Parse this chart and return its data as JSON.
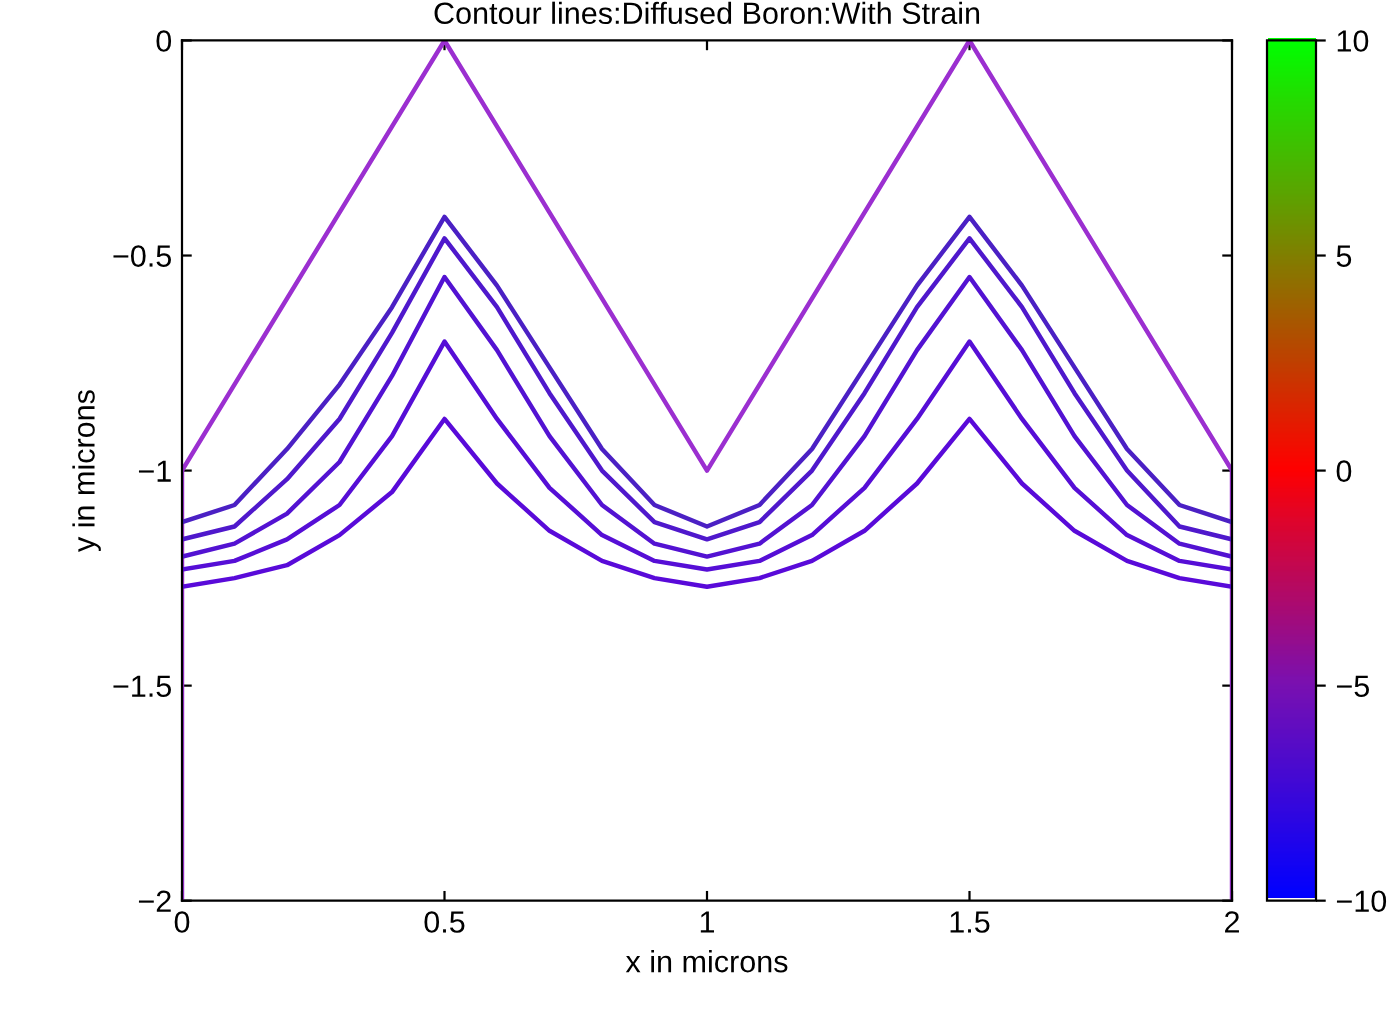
{
  "chart_data": {
    "type": "line",
    "title": "Contour lines:Diffused Boron:With Strain",
    "xlabel": "x in microns",
    "ylabel": "y in microns",
    "xlim": [
      0,
      2
    ],
    "xticks": [
      0,
      0.5,
      1,
      1.5,
      2
    ],
    "ylim": [
      -2,
      0
    ],
    "yticks": [
      -2,
      -1.5,
      -1,
      -0.5,
      0
    ],
    "clim": [
      -10,
      10
    ],
    "cticks": [
      -10,
      -5,
      0,
      5,
      10
    ],
    "grid": false,
    "legend": false,
    "marker": "none",
    "line_style": "solid",
    "series": [
      {
        "color": "#9b2fd0",
        "x": [
          0,
          0,
          0.5,
          1,
          1.5,
          2,
          2
        ],
        "values": [
          -2,
          -1,
          0,
          -1,
          0,
          -1,
          -2
        ]
      },
      {
        "color": "#4b20c4",
        "x": [
          0,
          0.1,
          0.2,
          0.3,
          0.4,
          0.5,
          0.6,
          0.7,
          0.8,
          0.9,
          1.0,
          1.1,
          1.2,
          1.3,
          1.4,
          1.5,
          1.6,
          1.7,
          1.8,
          1.9,
          2.0
        ],
        "values": [
          -1.12,
          -1.08,
          -0.95,
          -0.8,
          -0.62,
          -0.41,
          -0.57,
          -0.76,
          -0.95,
          -1.08,
          -1.13,
          -1.08,
          -0.95,
          -0.76,
          -0.57,
          -0.41,
          -0.57,
          -0.76,
          -0.95,
          -1.08,
          -1.12
        ]
      },
      {
        "color": "#4f18cc",
        "x": [
          0,
          0.1,
          0.2,
          0.3,
          0.4,
          0.5,
          0.6,
          0.7,
          0.8,
          0.9,
          1.0,
          1.1,
          1.2,
          1.3,
          1.4,
          1.5,
          1.6,
          1.7,
          1.8,
          1.9,
          2.0
        ],
        "values": [
          -1.16,
          -1.13,
          -1.02,
          -0.88,
          -0.68,
          -0.46,
          -0.62,
          -0.82,
          -1.0,
          -1.12,
          -1.16,
          -1.12,
          -1.0,
          -0.82,
          -0.62,
          -0.46,
          -0.62,
          -0.82,
          -1.0,
          -1.13,
          -1.16
        ]
      },
      {
        "color": "#5312d2",
        "x": [
          0,
          0.1,
          0.2,
          0.3,
          0.4,
          0.5,
          0.6,
          0.7,
          0.8,
          0.9,
          1.0,
          1.1,
          1.2,
          1.3,
          1.4,
          1.5,
          1.6,
          1.7,
          1.8,
          1.9,
          2.0
        ],
        "values": [
          -1.2,
          -1.17,
          -1.1,
          -0.98,
          -0.78,
          -0.55,
          -0.72,
          -0.92,
          -1.08,
          -1.17,
          -1.2,
          -1.17,
          -1.08,
          -0.92,
          -0.72,
          -0.55,
          -0.72,
          -0.92,
          -1.08,
          -1.17,
          -1.2
        ]
      },
      {
        "color": "#560ed6",
        "x": [
          0,
          0.1,
          0.2,
          0.3,
          0.4,
          0.5,
          0.6,
          0.7,
          0.8,
          0.9,
          1.0,
          1.1,
          1.2,
          1.3,
          1.4,
          1.5,
          1.6,
          1.7,
          1.8,
          1.9,
          2.0
        ],
        "values": [
          -1.23,
          -1.21,
          -1.16,
          -1.08,
          -0.92,
          -0.7,
          -0.88,
          -1.04,
          -1.15,
          -1.21,
          -1.23,
          -1.21,
          -1.15,
          -1.04,
          -0.88,
          -0.7,
          -0.88,
          -1.04,
          -1.15,
          -1.21,
          -1.23
        ]
      },
      {
        "color": "#590ad9",
        "x": [
          0,
          0.1,
          0.2,
          0.3,
          0.4,
          0.5,
          0.6,
          0.7,
          0.8,
          0.9,
          1.0,
          1.1,
          1.2,
          1.3,
          1.4,
          1.5,
          1.6,
          1.7,
          1.8,
          1.9,
          2.0
        ],
        "values": [
          -1.27,
          -1.25,
          -1.22,
          -1.15,
          -1.05,
          -0.88,
          -1.03,
          -1.14,
          -1.21,
          -1.25,
          -1.27,
          -1.25,
          -1.21,
          -1.14,
          -1.03,
          -0.88,
          -1.03,
          -1.14,
          -1.21,
          -1.25,
          -1.27
        ]
      }
    ]
  }
}
